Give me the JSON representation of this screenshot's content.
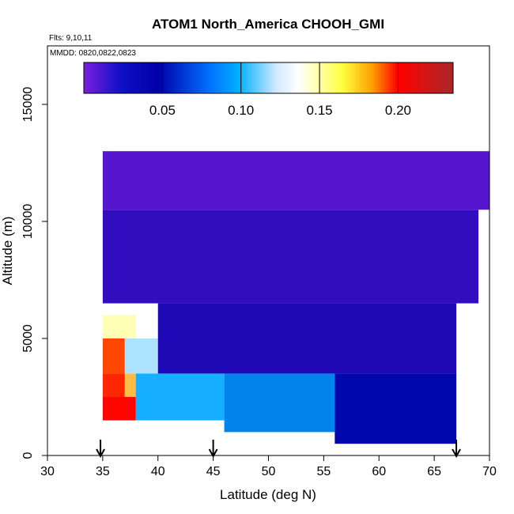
{
  "chart_data": {
    "type": "heatmap",
    "title": "ATOM1 North_America CHOOH_GMI",
    "annotations": [
      "Flts: 9,10,11",
      "MMDD: 0820,0822,0823"
    ],
    "xlabel": "Latitude (deg N)",
    "ylabel": "Altitude (m)",
    "xlim": [
      30,
      70
    ],
    "ylim": [
      0,
      17500
    ],
    "xticks": [
      30,
      35,
      40,
      45,
      50,
      55,
      60,
      65,
      70
    ],
    "yticks": [
      0,
      5000,
      10000,
      15000
    ],
    "colorbar": {
      "range": [
        0,
        0.235
      ],
      "ticks": [
        0.05,
        0.1,
        0.15,
        0.2
      ],
      "tick_labels": [
        "0.05",
        "0.10",
        "0.15",
        "0.20"
      ],
      "colors": [
        "#7a1fe0",
        "#0000a8",
        "#00a8ff",
        "#ffffff",
        "#ffff80",
        "#ff7000",
        "#ff0000",
        "#a82020"
      ]
    },
    "flight_arrows_lat": [
      34.8,
      45.0,
      67.0
    ],
    "heatmap_cells": [
      {
        "lat": [
          35,
          38
        ],
        "alt": [
          1500,
          2500
        ],
        "value": 0.2
      },
      {
        "lat": [
          35,
          37
        ],
        "alt": [
          2500,
          3500
        ],
        "value": 0.19
      },
      {
        "lat": [
          37,
          39
        ],
        "alt": [
          2500,
          3500
        ],
        "value": 0.15
      },
      {
        "lat": [
          35,
          37
        ],
        "alt": [
          3500,
          5000
        ],
        "value": 0.18
      },
      {
        "lat": [
          37,
          40
        ],
        "alt": [
          3500,
          5000
        ],
        "value": 0.09
      },
      {
        "lat": [
          35,
          38
        ],
        "alt": [
          5000,
          6000
        ],
        "value": 0.12
      },
      {
        "lat": [
          38,
          46
        ],
        "alt": [
          1500,
          3500
        ],
        "value": 0.07
      },
      {
        "lat": [
          46,
          56
        ],
        "alt": [
          1000,
          3500
        ],
        "value": 0.06
      },
      {
        "lat": [
          56,
          67
        ],
        "alt": [
          500,
          3500
        ],
        "value": 0.035
      },
      {
        "lat": [
          40,
          67
        ],
        "alt": [
          3500,
          6500
        ],
        "value": 0.025
      },
      {
        "lat": [
          35,
          69
        ],
        "alt": [
          6500,
          10500
        ],
        "value": 0.02
      },
      {
        "lat": [
          35,
          70
        ],
        "alt": [
          10500,
          13000
        ],
        "value": 0.01
      }
    ]
  }
}
